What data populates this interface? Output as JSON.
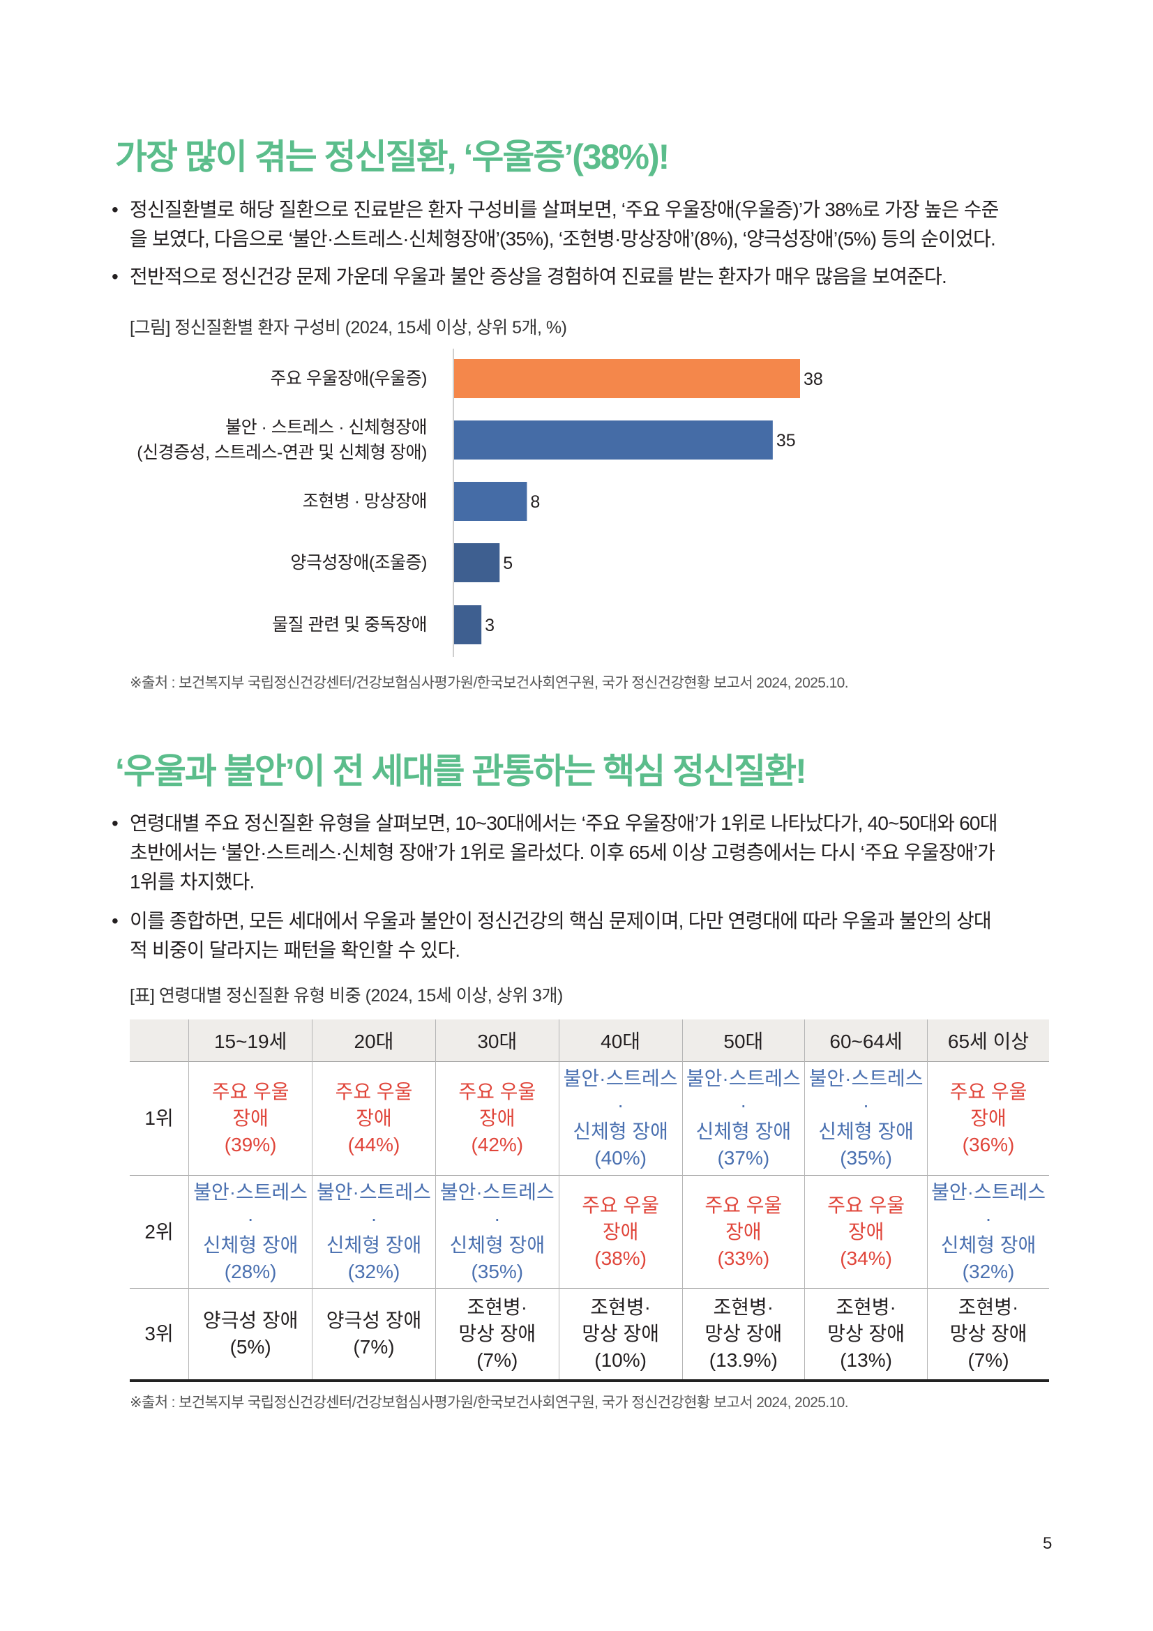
{
  "section1": {
    "title": "가장 많이 겪는 정신질환, ‘우울증’(38%)!",
    "bullets": [
      [
        "정신질환별로 해당 질환으로 진료받은 환자 구성비를 살펴보면, ‘주요 우울장애(우울증)’가 38%로 가장 높은 수준",
        "을 보였다, 다음으로 ‘불안·스트레스·신체형장애’(35%), ‘조현병·망상장애’(8%), ‘양극성장애’(5%) 등의 순이었다."
      ],
      [
        "전반적으로 정신건강 문제 가운데 우울과 불안 증상을 경험하여 진료를 받는 환자가 매우 많음을 보여준다."
      ]
    ],
    "figure_caption": "[그림] 정신질환별 환자 구성비 (2024, 15세 이상, 상위 5개, %)",
    "source": "※출처 : 보건복지부 국립정신건강센터/건강보험심사평가원/한국보건사회연구원, 국가 정신건강현황 보고서 2024, 2025.10."
  },
  "chart_data": {
    "type": "bar",
    "orientation": "horizontal",
    "title": "정신질환별 환자 구성비 (2024, 15세 이상, 상위 5개, %)",
    "categories": [
      [
        "주요 우울장애(우울증)"
      ],
      [
        "불안 · 스트레스 · 신체형장애",
        "(신경증성, 스트레스-연관 및 신체형 장애)"
      ],
      [
        "조현병 · 망상장애"
      ],
      [
        "양극성장애(조울증)"
      ],
      [
        "물질 관련 및 중독장애"
      ]
    ],
    "values": [
      38,
      35,
      8,
      5,
      3
    ],
    "colors": [
      "#f4874b",
      "#456ca6",
      "#456ca6",
      "#3e5f90",
      "#3e5f90"
    ],
    "xlim": [
      0,
      38
    ],
    "grid": false
  },
  "section2": {
    "title": "‘우울과 불안’이 전 세대를 관통하는 핵심 정신질환!",
    "bullets": [
      [
        "연령대별 주요 정신질환 유형을 살펴보면, 10~30대에서는 ‘주요 우울장애’가 1위로 나타났다가, 40~50대와 60대",
        "초반에서는 ‘불안·스트레스·신체형 장애’가 1위로 올라섰다. 이후 65세 이상 고령층에서는 다시 ‘주요 우울장애’가",
        "1위를 차지했다."
      ],
      [
        "이를 종합하면, 모든 세대에서 우울과 불안이 정신건강의 핵심 문제이며, 다만 연령대에 따라 우울과 불안의 상대",
        "적 비중이 달라지는 패턴을 확인할 수 있다."
      ]
    ],
    "table_caption": "[표] 연령대별 정신질환 유형 비중 (2024, 15세 이상, 상위 3개)",
    "table": {
      "headers": [
        "",
        "15~19세",
        "20대",
        "30대",
        "40대",
        "50대",
        "60~64세",
        "65세 이상"
      ],
      "rows": [
        {
          "rank": "1위",
          "cells": [
            {
              "lines": [
                "주요 우울",
                "장애",
                "(39%)"
              ],
              "color": "red"
            },
            {
              "lines": [
                "주요 우울",
                "장애",
                "(44%)"
              ],
              "color": "red"
            },
            {
              "lines": [
                "주요 우울",
                "장애",
                "(42%)"
              ],
              "color": "red"
            },
            {
              "lines": [
                "불안·스트레스·",
                "신체형 장애",
                "(40%)"
              ],
              "color": "blue"
            },
            {
              "lines": [
                "불안·스트레스·",
                "신체형 장애",
                "(37%)"
              ],
              "color": "blue"
            },
            {
              "lines": [
                "불안·스트레스·",
                "신체형 장애",
                "(35%)"
              ],
              "color": "blue"
            },
            {
              "lines": [
                "주요 우울",
                "장애",
                "(36%)"
              ],
              "color": "red"
            }
          ]
        },
        {
          "rank": "2위",
          "cells": [
            {
              "lines": [
                "불안·스트레스·",
                "신체형 장애",
                "(28%)"
              ],
              "color": "blue"
            },
            {
              "lines": [
                "불안·스트레스·",
                "신체형 장애",
                "(32%)"
              ],
              "color": "blue"
            },
            {
              "lines": [
                "불안·스트레스·",
                "신체형 장애",
                "(35%)"
              ],
              "color": "blue"
            },
            {
              "lines": [
                "주요 우울",
                "장애",
                "(38%)"
              ],
              "color": "red"
            },
            {
              "lines": [
                "주요 우울",
                "장애",
                "(33%)"
              ],
              "color": "red"
            },
            {
              "lines": [
                "주요 우울",
                "장애",
                "(34%)"
              ],
              "color": "red"
            },
            {
              "lines": [
                "불안·스트레스·",
                "신체형 장애",
                "(32%)"
              ],
              "color": "blue"
            }
          ]
        },
        {
          "rank": "3위",
          "cells": [
            {
              "lines": [
                "양극성 장애",
                "(5%)"
              ],
              "color": "black"
            },
            {
              "lines": [
                "양극성 장애",
                "(7%)"
              ],
              "color": "black"
            },
            {
              "lines": [
                "조현병·",
                "망상 장애",
                "(7%)"
              ],
              "color": "black"
            },
            {
              "lines": [
                "조현병·",
                "망상 장애",
                "(10%)"
              ],
              "color": "black"
            },
            {
              "lines": [
                "조현병·",
                "망상 장애",
                "(13.9%)"
              ],
              "color": "black"
            },
            {
              "lines": [
                "조현병·",
                "망상 장애",
                "(13%)"
              ],
              "color": "black"
            },
            {
              "lines": [
                "조현병·",
                "망상 장애",
                "(7%)"
              ],
              "color": "black"
            }
          ]
        }
      ]
    },
    "source": "※출처 : 보건복지부 국립정신건강센터/건강보험심사평가원/한국보건사회연구원, 국가 정신건강현황 보고서 2024, 2025.10."
  },
  "page_number": "5"
}
